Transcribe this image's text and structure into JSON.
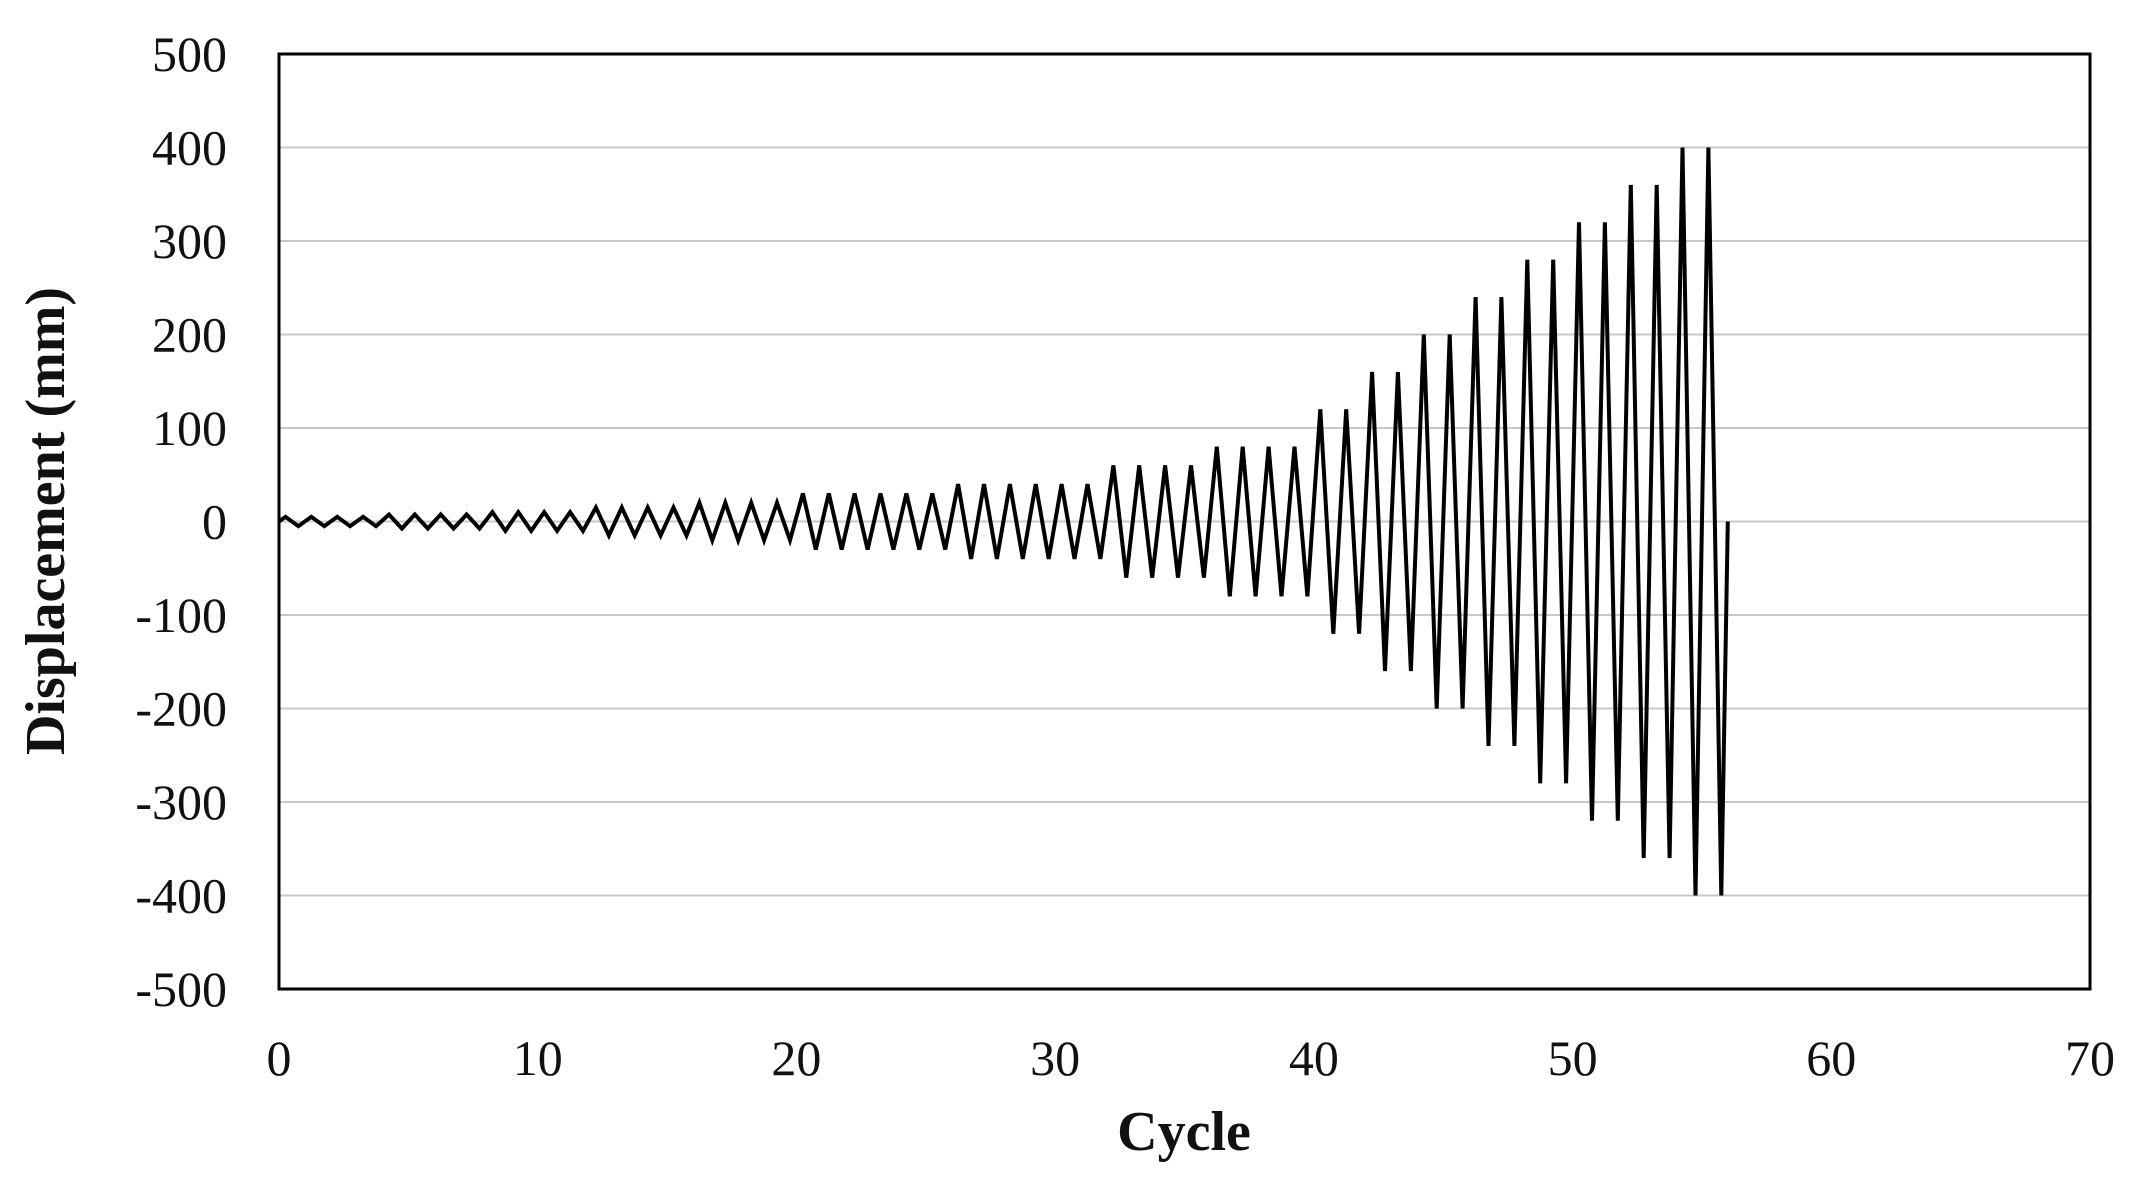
{
  "chart_data": {
    "type": "line",
    "title": "",
    "xlabel": "Cycle",
    "ylabel": "Displacement (mm)",
    "xlim": [
      0,
      70
    ],
    "ylim": [
      -500,
      500
    ],
    "x_ticks": [
      "0",
      "10",
      "20",
      "30",
      "40",
      "50",
      "60",
      "70"
    ],
    "y_ticks": [
      "500",
      "400",
      "300",
      "200",
      "100",
      "0",
      "-100",
      "-200",
      "-300",
      "-400",
      "-500"
    ],
    "grid": "horizontal",
    "legend": "none",
    "colors": {
      "line": "#000000",
      "grid": "#c8c8c8",
      "frame": "#000000"
    },
    "protocol": [
      {
        "amplitude": 5,
        "cycles": 4
      },
      {
        "amplitude": 7.5,
        "cycles": 4
      },
      {
        "amplitude": 10,
        "cycles": 4
      },
      {
        "amplitude": 15,
        "cycles": 4
      },
      {
        "amplitude": 20,
        "cycles": 4
      },
      {
        "amplitude": 30,
        "cycles": 6
      },
      {
        "amplitude": 40,
        "cycles": 6
      },
      {
        "amplitude": 60,
        "cycles": 4
      },
      {
        "amplitude": 80,
        "cycles": 4
      },
      {
        "amplitude": 120,
        "cycles": 2
      },
      {
        "amplitude": 160,
        "cycles": 2
      },
      {
        "amplitude": 200,
        "cycles": 2
      },
      {
        "amplitude": 240,
        "cycles": 2
      },
      {
        "amplitude": 280,
        "cycles": 2
      },
      {
        "amplitude": 320,
        "cycles": 2
      },
      {
        "amplitude": 360,
        "cycles": 2
      },
      {
        "amplitude": 400,
        "cycles": 2
      }
    ]
  }
}
